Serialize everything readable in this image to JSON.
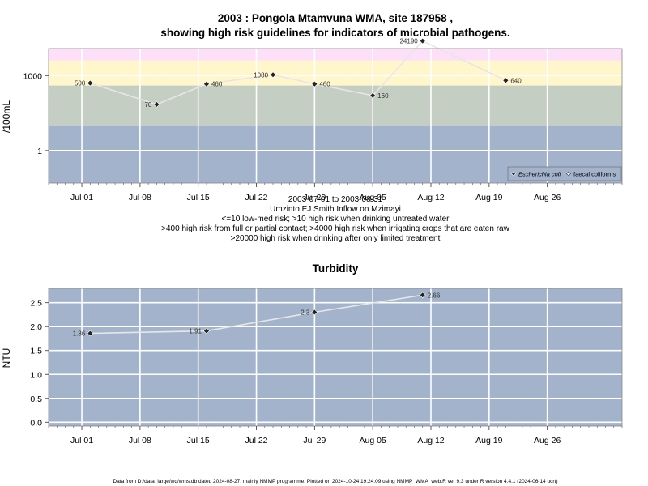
{
  "chart_data": [
    {
      "type": "line",
      "title_line1": "2003 : Pongola Mtamvuna WMA, site 187958 ,",
      "title_line2": "showing high risk guidelines for indicators of microbial pathogens.",
      "xlabel": "",
      "ylabel": "/100mL",
      "y_scale": "log",
      "ylim": [
        0.05,
        12000
      ],
      "xlim": [
        "2003-06-27",
        "2003-09-04"
      ],
      "y_ticks": [
        1,
        1000
      ],
      "y_tick_labels": [
        "1",
        "1000"
      ],
      "x_ticks": [
        "2003-07-01",
        "2003-07-08",
        "2003-07-15",
        "2003-07-22",
        "2003-07-29",
        "2003-08-05",
        "2003-08-12",
        "2003-08-19",
        "2003-08-26"
      ],
      "x_tick_labels": [
        "Jul 01",
        "Jul 08",
        "Jul 15",
        "Jul 22",
        "Jul 29",
        "Aug 05",
        "Aug 12",
        "Aug 19",
        "Aug 26"
      ],
      "grid": true,
      "bands": [
        {
          "from": 0.05,
          "to": 10,
          "color": "#a3b3cb"
        },
        {
          "from": 10,
          "to": 400,
          "color": "#c5cec2"
        },
        {
          "from": 400,
          "to": 4000,
          "color": "#fff6cc"
        },
        {
          "from": 4000,
          "to": 20000,
          "color": "#fde0f8"
        },
        {
          "from": 20000,
          "to": 12000000,
          "color": "#ffc5d2"
        }
      ],
      "series": [
        {
          "name": "Escherichia coli",
          "x": [
            "2003-07-02",
            "2003-07-10",
            "2003-07-16",
            "2003-07-24",
            "2003-07-29",
            "2003-08-05",
            "2003-08-11",
            "2003-08-21"
          ],
          "values": [
            500,
            70,
            460,
            1080,
            460,
            160,
            24190,
            640
          ],
          "labels": [
            "500",
            "70",
            "460",
            "1080",
            "460",
            "160",
            "24190",
            "640"
          ],
          "label_side": [
            "left",
            "left",
            "right",
            "left",
            "right",
            "right",
            "left",
            "right"
          ]
        }
      ],
      "legend": {
        "position": "bottom-right",
        "entries": [
          "Escherichia coli",
          "faecal coliforms"
        ]
      },
      "subtitle_lines": [
        "2003-07-01 to 2003-08-31",
        "Umzinto EJ Smith Inflow on Mzimayi",
        "<=10 low-med risk; >10 high risk when drinking untreated water",
        ">400 high risk from full or partial contact; >4000 high risk when irrigating crops that are eaten raw",
        ">20000 high risk when drinking after only limited treatment"
      ]
    },
    {
      "type": "line",
      "title": "Turbidity",
      "xlabel": "",
      "ylabel": "NTU",
      "ylim": [
        -0.08,
        2.8
      ],
      "xlim": [
        "2003-06-27",
        "2003-09-04"
      ],
      "y_ticks": [
        0,
        0.5,
        1,
        1.5,
        2,
        2.5
      ],
      "y_tick_labels": [
        "0.0",
        "0.5",
        "1.0",
        "1.5",
        "2.0",
        "2.5"
      ],
      "x_ticks": [
        "2003-07-01",
        "2003-07-08",
        "2003-07-15",
        "2003-07-22",
        "2003-07-29",
        "2003-08-05",
        "2003-08-12",
        "2003-08-19",
        "2003-08-26"
      ],
      "x_tick_labels": [
        "Jul 01",
        "Jul 08",
        "Jul 15",
        "Jul 22",
        "Jul 29",
        "Aug 05",
        "Aug 12",
        "Aug 19",
        "Aug 26"
      ],
      "grid": true,
      "background": "#a3b3cb",
      "series": [
        {
          "x": [
            "2003-07-02",
            "2003-07-16",
            "2003-07-29",
            "2003-08-11"
          ],
          "values": [
            1.86,
            1.91,
            2.3,
            2.66
          ],
          "labels": [
            "1.86",
            "1.91",
            "2.3",
            "2.66"
          ],
          "label_side": [
            "left",
            "left",
            "left",
            "right"
          ]
        }
      ]
    }
  ],
  "footer": "Data from D:/data_large/wq/wms.db dated 2024-08-27, mainly NMMP programme. Plotted on 2024-10-24 19:24:09 using NMMP_WMA_web.R ver 9.3 under R version 4.4.1 (2024-06-14 ucrt)"
}
